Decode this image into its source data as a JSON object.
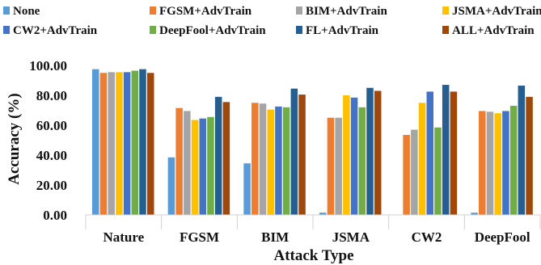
{
  "chart_data": {
    "type": "bar",
    "title": "",
    "xlabel": "Attack Type",
    "ylabel": "Accuracy (%)",
    "ylim": [
      0,
      100
    ],
    "yticks": [
      "0.00",
      "20.00",
      "40.00",
      "60.00",
      "80.00",
      "100.00"
    ],
    "grid": false,
    "legend_position": "top",
    "categories": [
      "Nature",
      "FGSM",
      "BIM",
      "JSMA",
      "CW2",
      "DeepFool"
    ],
    "series": [
      {
        "name": "None",
        "color": "#5B9BD5",
        "values": [
          97.5,
          38.5,
          34.5,
          1.5,
          0,
          1.5
        ]
      },
      {
        "name": "FGSM+AdvTrain",
        "color": "#ED7D31",
        "values": [
          95.0,
          71.5,
          75.0,
          65.0,
          53.5,
          69.5
        ]
      },
      {
        "name": "BIM+AdvTrain",
        "color": "#A5A5A5",
        "values": [
          95.5,
          69.5,
          74.5,
          65.0,
          57.0,
          69.0
        ]
      },
      {
        "name": "JSMA+AdvTrain",
        "color": "#FFC000",
        "values": [
          95.5,
          63.5,
          70.5,
          80.0,
          75.0,
          68.0
        ]
      },
      {
        "name": "CW2+AdvTrain",
        "color": "#4472C4",
        "values": [
          95.5,
          64.5,
          72.5,
          78.5,
          82.5,
          69.5
        ]
      },
      {
        "name": "DeepFool+AdvTrain",
        "color": "#70AD47",
        "values": [
          96.5,
          65.5,
          72.0,
          72.0,
          58.5,
          73.0
        ]
      },
      {
        "name": "FL+AdvTrain",
        "color": "#255E91",
        "values": [
          97.5,
          79.0,
          84.5,
          85.0,
          87.0,
          86.5
        ]
      },
      {
        "name": "ALL+AdvTrain",
        "color": "#9E480E",
        "values": [
          95.0,
          75.5,
          80.5,
          83.0,
          82.5,
          79.0
        ]
      }
    ]
  }
}
